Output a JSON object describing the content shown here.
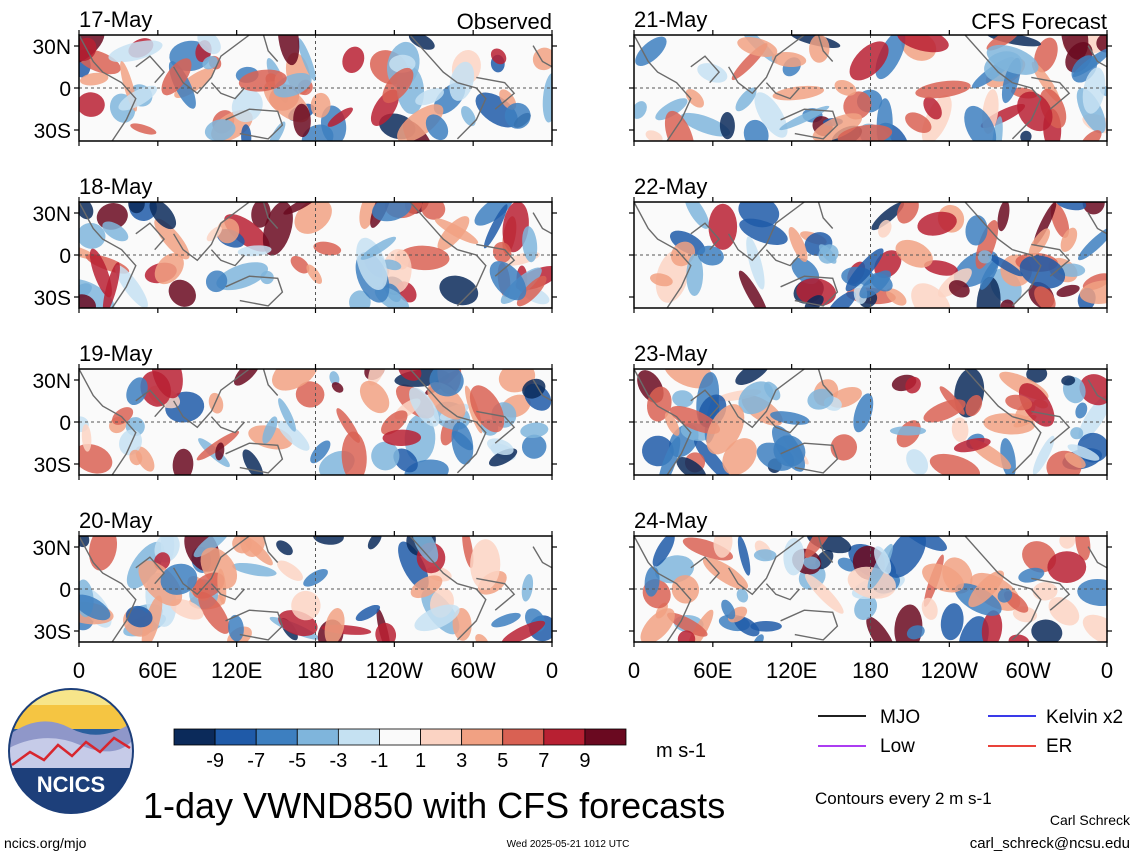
{
  "title": "1-day VWND850 with CFS forecasts",
  "footer": {
    "left_url": "ncics.org/mjo",
    "timestamp": "Wed 2025-05-21 1012 UTC",
    "author": "Carl Schreck",
    "email": "carl_schreck@ncsu.edu"
  },
  "logo": {
    "text": "NCICS"
  },
  "columns": [
    {
      "label": "Observed"
    },
    {
      "label": "CFS Forecast"
    }
  ],
  "contours_note": "Contours every 2 m s-1",
  "legend": [
    {
      "label": "MJO",
      "color": "#000000"
    },
    {
      "label": "Kelvin x2",
      "color": "#1e1ee6"
    },
    {
      "label": "Low",
      "color": "#a020f0"
    },
    {
      "label": "ER",
      "color": "#e6281e"
    }
  ],
  "colorbar": {
    "unit": "m s-1",
    "ticks": [
      "-9",
      "-7",
      "-5",
      "-3",
      "-1",
      "1",
      "3",
      "5",
      "7",
      "9"
    ],
    "colors": [
      "#0b2a5a",
      "#1f5aa8",
      "#3d7fc0",
      "#7fb5dc",
      "#c5e1f2",
      "#fafafa",
      "#fbd3c3",
      "#f1a183",
      "#d96153",
      "#b82032",
      "#6a0920"
    ]
  },
  "chart_data": {
    "type": "heatmap",
    "variable": "VWND850",
    "x_ticks": [
      "0",
      "60E",
      "120E",
      "180",
      "120W",
      "60W",
      "0"
    ],
    "y_ticks": [
      "30N",
      "0",
      "30S"
    ],
    "panels": [
      {
        "date": "17-May",
        "column": "Observed"
      },
      {
        "date": "18-May",
        "column": "Observed"
      },
      {
        "date": "19-May",
        "column": "Observed"
      },
      {
        "date": "20-May",
        "column": "Observed"
      },
      {
        "date": "21-May",
        "column": "CFS Forecast"
      },
      {
        "date": "22-May",
        "column": "CFS Forecast"
      },
      {
        "date": "23-May",
        "column": "CFS Forecast"
      },
      {
        "date": "24-May",
        "column": "CFS Forecast"
      }
    ]
  }
}
